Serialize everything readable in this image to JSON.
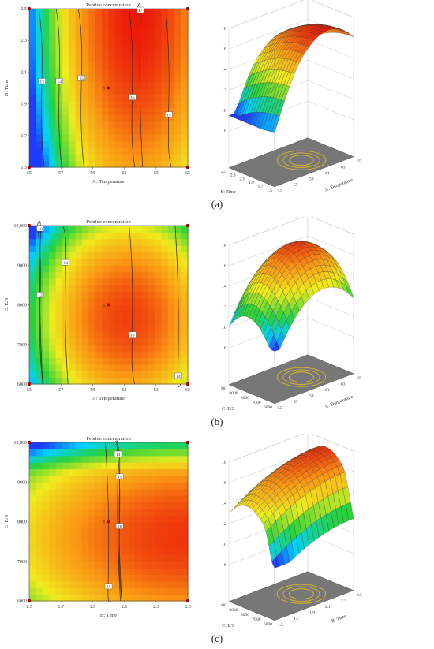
{
  "figure": {
    "panels": [
      {
        "tag": "(a)"
      },
      {
        "tag": "(b)"
      },
      {
        "tag": "(c)"
      }
    ]
  },
  "chart_data": [
    {
      "type": "heatmap",
      "title": "Peptide concentration",
      "xlabel": "A: Temperature",
      "ylabel": "B: Time",
      "xticks": [
        "55",
        "57",
        "59",
        "61",
        "63",
        "65"
      ],
      "yticks": [
        "1.5",
        "1.7",
        "1.9",
        "2.1",
        "2.3",
        "2.5"
      ],
      "xlim": [
        55,
        65
      ],
      "ylim": [
        1.5,
        2.5
      ],
      "contour_labels": [
        {
          "text": "13",
          "x": 55.8,
          "y": 2.04
        },
        {
          "text": "14",
          "x": 56.9,
          "y": 2.04
        },
        {
          "text": "15",
          "x": 58.3,
          "y": 2.06
        },
        {
          "text": "16",
          "x": 61.5,
          "y": 1.94
        },
        {
          "text": "15",
          "x": 63.8,
          "y": 1.83
        },
        {
          "text": "17",
          "x": 62.0,
          "y": 2.49
        }
      ],
      "center_point": {
        "label": "5",
        "x": 60,
        "y": 2.0
      },
      "design_points": [
        [
          55,
          1.5
        ],
        [
          55,
          2.5
        ],
        [
          65,
          1.5
        ],
        [
          65,
          2.5
        ]
      ]
    },
    {
      "type": "surface",
      "zlabel": "Peptide concentration",
      "xlabel": "A: Temperature",
      "ylabel": "B: Time",
      "xticks": [
        "55",
        "57",
        "59",
        "61",
        "63",
        "65"
      ],
      "yticks": [
        "1.5",
        "1.7",
        "1.9",
        "2.1",
        "2.3",
        "2.5"
      ],
      "zticks": [
        "8",
        "10",
        "12",
        "14",
        "16",
        "18"
      ],
      "zlim": [
        8,
        18
      ]
    },
    {
      "type": "heatmap",
      "title": "Peptide concentration",
      "xlabel": "A: Temperature",
      "ylabel": "C: E/S",
      "xticks": [
        "55",
        "57",
        "59",
        "61",
        "63",
        "65"
      ],
      "yticks": [
        "6000",
        "7000",
        "8000",
        "9000",
        "10,000"
      ],
      "xlim": [
        55,
        65
      ],
      "ylim": [
        6000,
        10000
      ],
      "contour_labels": [
        {
          "text": "10",
          "x": 55.7,
          "y": 9920
        },
        {
          "text": "12",
          "x": 55.7,
          "y": 8240
        },
        {
          "text": "14",
          "x": 57.3,
          "y": 9060
        },
        {
          "text": "16",
          "x": 61.5,
          "y": 7240
        },
        {
          "text": "14",
          "x": 64.4,
          "y": 6200
        }
      ],
      "center_point": {
        "label": "5",
        "x": 60,
        "y": 8000
      },
      "design_points": [
        [
          55,
          6000
        ],
        [
          55,
          10000
        ],
        [
          65,
          6000
        ],
        [
          65,
          10000
        ]
      ]
    },
    {
      "type": "surface",
      "zlabel": "Peptide concentration",
      "xlabel": "A: Temperature",
      "ylabel": "C: E/S",
      "xticks": [
        "55",
        "57",
        "59",
        "61",
        "63",
        "65"
      ],
      "yticks": [
        "6000",
        "7000",
        "8000",
        "9000",
        "10,000"
      ],
      "zticks": [
        "8",
        "10",
        "12",
        "14",
        "16",
        "18"
      ],
      "zlim": [
        8,
        18
      ]
    },
    {
      "type": "heatmap",
      "title": "Peptide concentration",
      "xlabel": "B: Time",
      "ylabel": "C: E/S",
      "xticks": [
        "1.5",
        "1.7",
        "1.9",
        "2.1",
        "2.3",
        "2.5"
      ],
      "yticks": [
        "6000",
        "7000",
        "8000",
        "9000",
        "10,000"
      ],
      "xlim": [
        1.5,
        2.5
      ],
      "ylim": [
        6000,
        10000
      ],
      "contour_labels": [
        {
          "text": "14",
          "x": 2.06,
          "y": 9700
        },
        {
          "text": "15",
          "x": 2.07,
          "y": 9130
        },
        {
          "text": "16",
          "x": 2.07,
          "y": 7880
        },
        {
          "text": "15",
          "x": 2.0,
          "y": 6360
        }
      ],
      "center_point": {
        "label": "5",
        "x": 2.0,
        "y": 8000
      },
      "design_points": [
        [
          1.5,
          6000
        ],
        [
          1.5,
          10000
        ],
        [
          2.5,
          6000
        ],
        [
          2.5,
          10000
        ]
      ]
    },
    {
      "type": "surface",
      "zlabel": "Peptide concentration",
      "xlabel": "B: Time",
      "ylabel": "C: E/S",
      "xticks": [
        "1.5",
        "1.7",
        "1.9",
        "2.1",
        "2.3",
        "2.5"
      ],
      "yticks": [
        "6000",
        "7000",
        "8000",
        "9000",
        "10,000"
      ],
      "zticks": [
        "8",
        "10",
        "12",
        "14",
        "16",
        "18"
      ],
      "zlim": [
        8,
        18
      ]
    }
  ]
}
